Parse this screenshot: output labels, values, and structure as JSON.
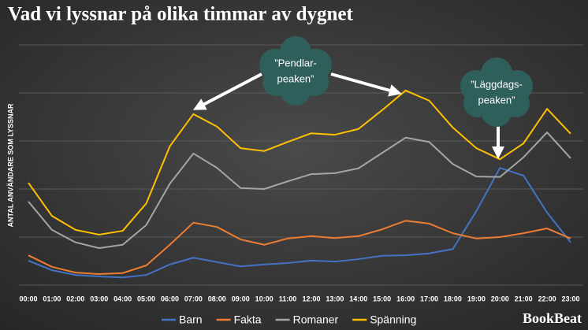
{
  "chart_data": {
    "type": "line",
    "title": "Vad vi lyssnar på olika timmar av dygnet",
    "y_label": "ANTAL ANVÄNDARE SOM LYSSNAR",
    "categories": [
      "00:00",
      "01:00",
      "02:00",
      "03:00",
      "04:00",
      "05:00",
      "06:00",
      "07:00",
      "08:00",
      "09:00",
      "10:00",
      "11:00",
      "12:00",
      "13:00",
      "14:00",
      "15:00",
      "16:00",
      "17:00",
      "18:00",
      "19:00",
      "20:00",
      "21:00",
      "22:00",
      "23:00"
    ],
    "series": [
      {
        "name": "Barn",
        "color": "#4472c4",
        "values": [
          0.51,
          0.31,
          0.21,
          0.18,
          0.16,
          0.21,
          0.43,
          0.57,
          0.48,
          0.39,
          0.43,
          0.46,
          0.51,
          0.49,
          0.54,
          0.61,
          0.62,
          0.66,
          0.75,
          1.54,
          2.44,
          2.28,
          1.51,
          0.89
        ]
      },
      {
        "name": "Fakta",
        "color": "#ed7d31",
        "values": [
          0.62,
          0.38,
          0.26,
          0.23,
          0.25,
          0.41,
          0.84,
          1.3,
          1.21,
          0.95,
          0.84,
          0.97,
          1.02,
          0.98,
          1.02,
          1.16,
          1.34,
          1.28,
          1.08,
          0.97,
          1.0,
          1.08,
          1.18,
          0.97
        ]
      },
      {
        "name": "Romaner",
        "color": "#a5a5a5",
        "values": [
          1.74,
          1.15,
          0.89,
          0.77,
          0.84,
          1.25,
          2.11,
          2.74,
          2.44,
          2.02,
          2.0,
          2.16,
          2.31,
          2.33,
          2.43,
          2.75,
          3.07,
          2.98,
          2.52,
          2.26,
          2.25,
          2.66,
          3.18,
          2.64
        ]
      },
      {
        "name": "Spänning",
        "color": "#ffc000",
        "values": [
          2.13,
          1.44,
          1.15,
          1.05,
          1.13,
          1.7,
          2.89,
          3.56,
          3.3,
          2.85,
          2.79,
          2.98,
          3.16,
          3.13,
          3.25,
          3.64,
          4.05,
          3.84,
          3.28,
          2.85,
          2.62,
          2.95,
          3.67,
          3.15
        ]
      }
    ],
    "ylim": [
      0,
      5
    ],
    "yticks": [
      0,
      1,
      2,
      3,
      4,
      5
    ],
    "grid": true,
    "ytick_labels": false,
    "legend": "bottom",
    "annotations": [
      {
        "lines": [
          "”Pendlar-",
          "peaken”"
        ]
      },
      {
        "lines": [
          "”Läggdags-",
          "peaken”"
        ]
      }
    ],
    "brand": "BookBeat"
  }
}
